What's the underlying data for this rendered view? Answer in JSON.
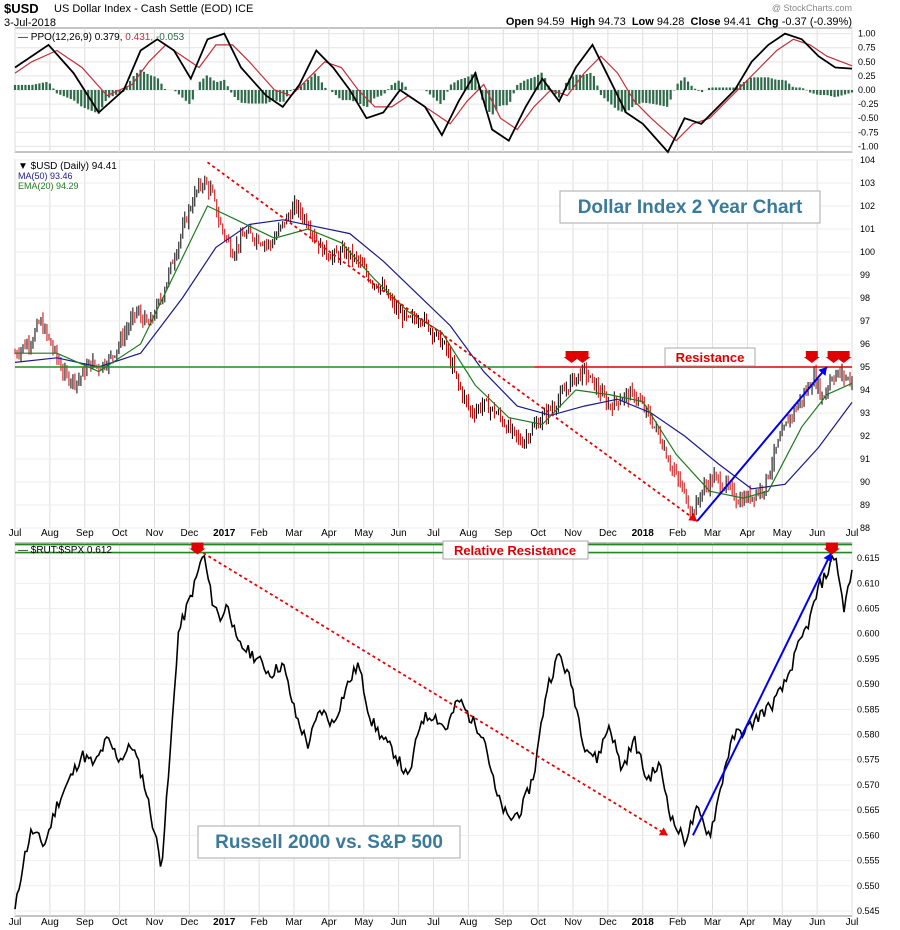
{
  "header": {
    "symbol": "$USD",
    "description": "US Dollar Index - Cash Settle (EOD) ICE",
    "date": "3-Jul-2018",
    "credit": "@ StockCharts.com",
    "quote": {
      "open_label": "Open",
      "open": "94.59",
      "high_label": "High",
      "high": "94.73",
      "low_label": "Low",
      "low": "94.28",
      "close_label": "Close",
      "close": "94.41",
      "chg_label": "Chg",
      "chg": "-0.37 (-0.39%)"
    }
  },
  "colors": {
    "price_up": "#000000",
    "price_down": "#cc0000",
    "ma50": "#1a1a8c",
    "ema20": "#1f7a1f",
    "resistance": "#dd0000",
    "relative_resistance": "#1f8a1f",
    "trend_up": "#0000ee",
    "trend_down": "#ee0000",
    "annotation_text": "#3a7a9a",
    "ppo_hist": "#2e6b4a"
  },
  "x_axis_labels": [
    "Jul",
    "Aug",
    "Sep",
    "Oct",
    "Nov",
    "Dec",
    "2017",
    "Feb",
    "Mar",
    "Apr",
    "May",
    "Jun",
    "Jul",
    "Aug",
    "Sep",
    "Oct",
    "Nov",
    "Dec",
    "2018",
    "Feb",
    "Mar",
    "Apr",
    "May",
    "Jun",
    "Jul"
  ],
  "annotations": {
    "resistance": "Resistance",
    "relative_resistance": "Relative Resistance",
    "dollar_box": "Dollar Index 2 Year Chart",
    "russell_box": "Russell 2000 vs. S&P 500"
  },
  "chart_data": [
    {
      "type": "line",
      "panel": "PPO",
      "legend": {
        "name": "PPO(12,26,9)",
        "ppo": "0.379",
        "signal": "0.431",
        "hist": "-0.053"
      },
      "ylim": [
        -1.1,
        1.1
      ],
      "y_ticks": [
        "1.00",
        "0.75",
        "0.50",
        "0.25",
        "0.00",
        "-0.25",
        "-0.50",
        "-0.75",
        "-1.00"
      ],
      "ppo": [
        [
          0,
          0.4
        ],
        [
          0.02,
          0.6
        ],
        [
          0.04,
          0.8
        ],
        [
          0.07,
          0.3
        ],
        [
          0.1,
          -0.4
        ],
        [
          0.13,
          0.0
        ],
        [
          0.15,
          0.7
        ],
        [
          0.17,
          0.9
        ],
        [
          0.19,
          0.7
        ],
        [
          0.21,
          0.2
        ],
        [
          0.23,
          0.9
        ],
        [
          0.25,
          1.0
        ],
        [
          0.27,
          0.4
        ],
        [
          0.3,
          -0.1
        ],
        [
          0.32,
          -0.3
        ],
        [
          0.34,
          0.1
        ],
        [
          0.36,
          0.7
        ],
        [
          0.38,
          0.4
        ],
        [
          0.4,
          0.0
        ],
        [
          0.42,
          -0.5
        ],
        [
          0.44,
          -0.4
        ],
        [
          0.46,
          0.0
        ],
        [
          0.49,
          -0.3
        ],
        [
          0.51,
          -0.8
        ],
        [
          0.53,
          -0.2
        ],
        [
          0.55,
          0.3
        ],
        [
          0.57,
          -0.7
        ],
        [
          0.59,
          -0.9
        ],
        [
          0.61,
          -0.3
        ],
        [
          0.63,
          0.2
        ],
        [
          0.65,
          -0.2
        ],
        [
          0.67,
          0.4
        ],
        [
          0.69,
          0.8
        ],
        [
          0.71,
          0.2
        ],
        [
          0.73,
          -0.4
        ],
        [
          0.75,
          -0.6
        ],
        [
          0.78,
          -1.1
        ],
        [
          0.8,
          -0.5
        ],
        [
          0.82,
          -0.6
        ],
        [
          0.84,
          -0.3
        ],
        [
          0.86,
          0.0
        ],
        [
          0.88,
          0.5
        ],
        [
          0.9,
          0.8
        ],
        [
          0.92,
          1.0
        ],
        [
          0.94,
          0.9
        ],
        [
          0.96,
          0.6
        ],
        [
          0.98,
          0.4
        ],
        [
          1.0,
          0.38
        ]
      ],
      "signal": [
        [
          0,
          0.3
        ],
        [
          0.02,
          0.5
        ],
        [
          0.05,
          0.7
        ],
        [
          0.08,
          0.4
        ],
        [
          0.11,
          -0.1
        ],
        [
          0.14,
          0.1
        ],
        [
          0.16,
          0.5
        ],
        [
          0.18,
          0.8
        ],
        [
          0.2,
          0.6
        ],
        [
          0.22,
          0.4
        ],
        [
          0.24,
          0.8
        ],
        [
          0.26,
          0.8
        ],
        [
          0.28,
          0.5
        ],
        [
          0.31,
          0.0
        ],
        [
          0.33,
          -0.1
        ],
        [
          0.35,
          0.2
        ],
        [
          0.37,
          0.5
        ],
        [
          0.39,
          0.4
        ],
        [
          0.41,
          0.0
        ],
        [
          0.43,
          -0.3
        ],
        [
          0.45,
          -0.3
        ],
        [
          0.47,
          -0.1
        ],
        [
          0.5,
          -0.4
        ],
        [
          0.52,
          -0.6
        ],
        [
          0.54,
          -0.2
        ],
        [
          0.56,
          0.1
        ],
        [
          0.58,
          -0.5
        ],
        [
          0.6,
          -0.7
        ],
        [
          0.62,
          -0.3
        ],
        [
          0.64,
          0.0
        ],
        [
          0.66,
          -0.1
        ],
        [
          0.68,
          0.3
        ],
        [
          0.7,
          0.6
        ],
        [
          0.72,
          0.3
        ],
        [
          0.74,
          -0.2
        ],
        [
          0.76,
          -0.5
        ],
        [
          0.79,
          -0.9
        ],
        [
          0.81,
          -0.6
        ],
        [
          0.83,
          -0.5
        ],
        [
          0.85,
          -0.2
        ],
        [
          0.87,
          0.1
        ],
        [
          0.89,
          0.4
        ],
        [
          0.91,
          0.7
        ],
        [
          0.93,
          0.9
        ],
        [
          0.95,
          0.8
        ],
        [
          0.97,
          0.6
        ],
        [
          1.0,
          0.43
        ]
      ]
    },
    {
      "type": "line",
      "panel": "$USD (Daily)",
      "legend": {
        "name": "$USD (Daily)",
        "value": "94.41",
        "ma_name": "MA(50)",
        "ma_value": "93.46",
        "ema_name": "EMA(20)",
        "ema_value": "94.29"
      },
      "ylim": [
        88,
        104
      ],
      "y_ticks": [
        104,
        103,
        102,
        101,
        100,
        99,
        98,
        97,
        96,
        95,
        94,
        93,
        92,
        91,
        90,
        89,
        88
      ],
      "price": [
        [
          0.0,
          95.6
        ],
        [
          0.02,
          96.2
        ],
        [
          0.03,
          97.0
        ],
        [
          0.045,
          95.8
        ],
        [
          0.06,
          94.6
        ],
        [
          0.075,
          94.4
        ],
        [
          0.09,
          95.2
        ],
        [
          0.1,
          95.0
        ],
        [
          0.115,
          95.4
        ],
        [
          0.13,
          96.4
        ],
        [
          0.145,
          97.4
        ],
        [
          0.16,
          96.8
        ],
        [
          0.175,
          98.0
        ],
        [
          0.19,
          99.8
        ],
        [
          0.205,
          101.5
        ],
        [
          0.215,
          102.5
        ],
        [
          0.225,
          103.1
        ],
        [
          0.235,
          102.6
        ],
        [
          0.245,
          101.2
        ],
        [
          0.26,
          100.0
        ],
        [
          0.275,
          100.8
        ],
        [
          0.29,
          100.6
        ],
        [
          0.305,
          100.3
        ],
        [
          0.32,
          101.2
        ],
        [
          0.335,
          102.0
        ],
        [
          0.35,
          101.3
        ],
        [
          0.365,
          100.2
        ],
        [
          0.38,
          99.8
        ],
        [
          0.395,
          100.0
        ],
        [
          0.41,
          99.6
        ],
        [
          0.425,
          98.8
        ],
        [
          0.44,
          98.4
        ],
        [
          0.455,
          97.5
        ],
        [
          0.47,
          97.0
        ],
        [
          0.485,
          97.2
        ],
        [
          0.5,
          96.5
        ],
        [
          0.515,
          95.8
        ],
        [
          0.53,
          94.2
        ],
        [
          0.545,
          93.0
        ],
        [
          0.56,
          93.4
        ],
        [
          0.575,
          93.0
        ],
        [
          0.59,
          92.3
        ],
        [
          0.605,
          91.7
        ],
        [
          0.62,
          92.4
        ],
        [
          0.635,
          93.0
        ],
        [
          0.65,
          93.6
        ],
        [
          0.665,
          94.4
        ],
        [
          0.68,
          94.8
        ],
        [
          0.695,
          94.1
        ],
        [
          0.71,
          93.3
        ],
        [
          0.725,
          93.7
        ],
        [
          0.74,
          93.8
        ],
        [
          0.755,
          93.0
        ],
        [
          0.77,
          92.0
        ],
        [
          0.785,
          90.6
        ],
        [
          0.8,
          89.5
        ],
        [
          0.81,
          88.6
        ],
        [
          0.82,
          89.6
        ],
        [
          0.835,
          90.2
        ],
        [
          0.85,
          89.8
        ],
        [
          0.865,
          89.2
        ],
        [
          0.88,
          89.4
        ],
        [
          0.895,
          89.8
        ],
        [
          0.91,
          91.5
        ],
        [
          0.925,
          92.8
        ],
        [
          0.94,
          93.6
        ],
        [
          0.955,
          94.6
        ],
        [
          0.965,
          93.6
        ],
        [
          0.975,
          94.6
        ],
        [
          0.985,
          94.7
        ],
        [
          1.0,
          94.4
        ]
      ],
      "ma50": [
        [
          0.0,
          95.2
        ],
        [
          0.05,
          95.4
        ],
        [
          0.1,
          95.0
        ],
        [
          0.15,
          95.6
        ],
        [
          0.2,
          98.0
        ],
        [
          0.24,
          100.2
        ],
        [
          0.28,
          101.2
        ],
        [
          0.32,
          101.4
        ],
        [
          0.36,
          101.1
        ],
        [
          0.4,
          100.8
        ],
        [
          0.44,
          99.6
        ],
        [
          0.48,
          98.2
        ],
        [
          0.52,
          96.8
        ],
        [
          0.56,
          94.8
        ],
        [
          0.6,
          93.3
        ],
        [
          0.64,
          92.9
        ],
        [
          0.68,
          93.3
        ],
        [
          0.72,
          93.6
        ],
        [
          0.76,
          93.0
        ],
        [
          0.8,
          92.0
        ],
        [
          0.84,
          90.8
        ],
        [
          0.88,
          89.7
        ],
        [
          0.92,
          89.9
        ],
        [
          0.96,
          91.5
        ],
        [
          1.0,
          93.46
        ]
      ],
      "ema20": [
        [
          0.0,
          95.6
        ],
        [
          0.05,
          95.6
        ],
        [
          0.1,
          94.8
        ],
        [
          0.15,
          96.0
        ],
        [
          0.19,
          99.0
        ],
        [
          0.23,
          102.0
        ],
        [
          0.27,
          101.3
        ],
        [
          0.31,
          100.6
        ],
        [
          0.35,
          101.0
        ],
        [
          0.39,
          100.4
        ],
        [
          0.43,
          98.8
        ],
        [
          0.47,
          97.4
        ],
        [
          0.51,
          96.5
        ],
        [
          0.55,
          94.2
        ],
        [
          0.59,
          92.8
        ],
        [
          0.63,
          92.5
        ],
        [
          0.67,
          94.0
        ],
        [
          0.71,
          93.8
        ],
        [
          0.75,
          93.5
        ],
        [
          0.79,
          91.2
        ],
        [
          0.83,
          89.6
        ],
        [
          0.87,
          89.3
        ],
        [
          0.9,
          89.6
        ],
        [
          0.94,
          92.4
        ],
        [
          0.97,
          93.8
        ],
        [
          1.0,
          94.29
        ]
      ],
      "resistance_level": 95.0,
      "trend_down": [
        [
          0.23,
          103.9
        ],
        [
          0.815,
          88.3
        ]
      ],
      "trend_up": [
        [
          0.815,
          88.3
        ],
        [
          0.97,
          95.0
        ]
      ]
    },
    {
      "type": "line",
      "panel": "$RUT:$SPX",
      "legend": {
        "name": "$RUT:$SPX",
        "value": "0.612"
      },
      "ylim": [
        0.544,
        0.618
      ],
      "y_ticks": [
        "0.615",
        "0.610",
        "0.605",
        "0.600",
        "0.595",
        "0.590",
        "0.585",
        "0.580",
        "0.575",
        "0.570",
        "0.565",
        "0.560",
        "0.555",
        "0.550",
        "0.545"
      ],
      "ratio": [
        [
          0.0,
          0.545
        ],
        [
          0.01,
          0.555
        ],
        [
          0.02,
          0.561
        ],
        [
          0.035,
          0.558
        ],
        [
          0.05,
          0.566
        ],
        [
          0.065,
          0.571
        ],
        [
          0.08,
          0.576
        ],
        [
          0.095,
          0.574
        ],
        [
          0.11,
          0.579
        ],
        [
          0.125,
          0.575
        ],
        [
          0.14,
          0.578
        ],
        [
          0.155,
          0.57
        ],
        [
          0.165,
          0.562
        ],
        [
          0.175,
          0.554
        ],
        [
          0.185,
          0.575
        ],
        [
          0.195,
          0.6
        ],
        [
          0.205,
          0.605
        ],
        [
          0.215,
          0.61
        ],
        [
          0.225,
          0.616
        ],
        [
          0.235,
          0.607
        ],
        [
          0.245,
          0.603
        ],
        [
          0.255,
          0.606
        ],
        [
          0.265,
          0.598
        ],
        [
          0.275,
          0.597
        ],
        [
          0.29,
          0.595
        ],
        [
          0.305,
          0.592
        ],
        [
          0.32,
          0.594
        ],
        [
          0.335,
          0.584
        ],
        [
          0.35,
          0.578
        ],
        [
          0.365,
          0.585
        ],
        [
          0.38,
          0.582
        ],
        [
          0.395,
          0.589
        ],
        [
          0.41,
          0.594
        ],
        [
          0.425,
          0.583
        ],
        [
          0.44,
          0.579
        ],
        [
          0.455,
          0.576
        ],
        [
          0.47,
          0.571
        ],
        [
          0.485,
          0.583
        ],
        [
          0.5,
          0.584
        ],
        [
          0.515,
          0.581
        ],
        [
          0.53,
          0.587
        ],
        [
          0.545,
          0.583
        ],
        [
          0.56,
          0.58
        ],
        [
          0.575,
          0.568
        ],
        [
          0.59,
          0.563
        ],
        [
          0.605,
          0.565
        ],
        [
          0.62,
          0.572
        ],
        [
          0.635,
          0.589
        ],
        [
          0.65,
          0.596
        ],
        [
          0.665,
          0.59
        ],
        [
          0.68,
          0.578
        ],
        [
          0.695,
          0.575
        ],
        [
          0.71,
          0.582
        ],
        [
          0.725,
          0.573
        ],
        [
          0.74,
          0.579
        ],
        [
          0.755,
          0.571
        ],
        [
          0.77,
          0.574
        ],
        [
          0.785,
          0.563
        ],
        [
          0.8,
          0.559
        ],
        [
          0.815,
          0.565
        ],
        [
          0.83,
          0.56
        ],
        [
          0.84,
          0.567
        ],
        [
          0.85,
          0.575
        ],
        [
          0.86,
          0.58
        ],
        [
          0.875,
          0.581
        ],
        [
          0.89,
          0.584
        ],
        [
          0.905,
          0.586
        ],
        [
          0.92,
          0.59
        ],
        [
          0.935,
          0.597
        ],
        [
          0.95,
          0.603
        ],
        [
          0.96,
          0.609
        ],
        [
          0.97,
          0.612
        ],
        [
          0.98,
          0.616
        ],
        [
          0.99,
          0.605
        ],
        [
          1.0,
          0.612
        ]
      ],
      "relative_resistance_level": 0.6165,
      "trend_down": [
        [
          0.225,
          0.616
        ],
        [
          0.78,
          0.56
        ]
      ],
      "trend_up": [
        [
          0.81,
          0.56
        ],
        [
          0.975,
          0.616
        ]
      ]
    }
  ]
}
